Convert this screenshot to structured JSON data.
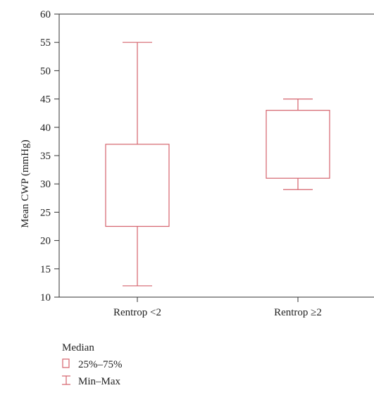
{
  "chart_data": {
    "type": "box",
    "title": "",
    "xlabel": "",
    "ylabel": "Mean CWP (mmHg)",
    "ylim": [
      10,
      60
    ],
    "yticks": [
      10,
      15,
      20,
      25,
      30,
      35,
      40,
      45,
      50,
      55,
      60
    ],
    "grid": false,
    "categories": [
      "Rentrop <2",
      "Rentrop ≥2"
    ],
    "boxes": [
      {
        "category": "Rentrop <2",
        "min": 12,
        "q1": 22.5,
        "q3": 37,
        "max": 55
      },
      {
        "category": "Rentrop ≥2",
        "min": 29,
        "q1": 31,
        "q3": 43,
        "max": 45
      }
    ],
    "color": "#d4626c",
    "legend": {
      "position": "bottom-left",
      "entries": [
        {
          "label": "Median",
          "symbol": "none"
        },
        {
          "label": "25%–75%",
          "symbol": "box"
        },
        {
          "label": "Min–Max",
          "symbol": "whisker"
        }
      ]
    }
  }
}
